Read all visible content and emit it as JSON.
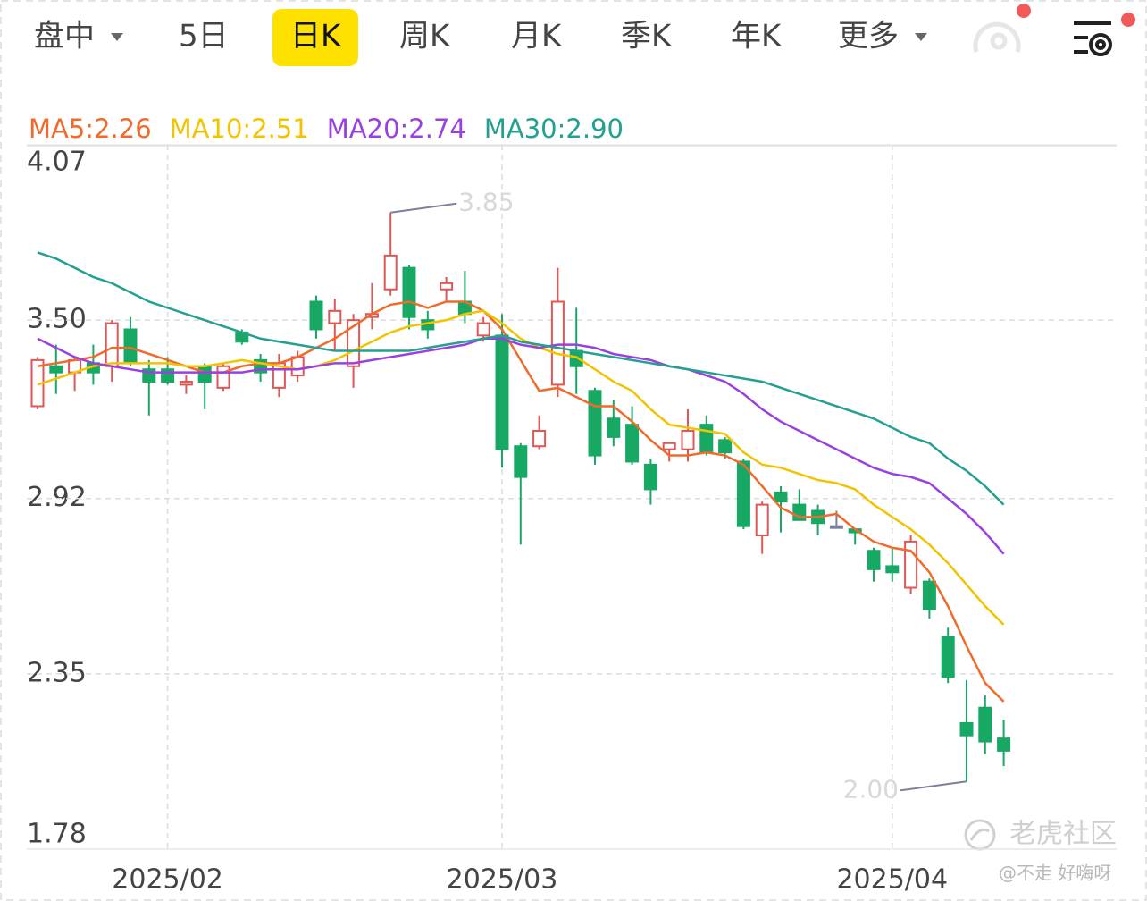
{
  "tabs": [
    "盘中",
    "5日",
    "日K",
    "周K",
    "月K",
    "季K",
    "年K",
    "更多"
  ],
  "watermark": "老虎社区",
  "credit": "@不走 好嗨呀",
  "chart_data": {
    "type": "candlestick",
    "categories": [
      null,
      null,
      null,
      null,
      null,
      null,
      null,
      "2025/02",
      null,
      null,
      null,
      null,
      null,
      null,
      null,
      null,
      null,
      null,
      null,
      null,
      null,
      null,
      null,
      null,
      null,
      "2025/03",
      null,
      null,
      null,
      null,
      null,
      null,
      null,
      null,
      null,
      null,
      null,
      null,
      null,
      null,
      null,
      null,
      null,
      null,
      null,
      null,
      "2025/04",
      null,
      null,
      null,
      null,
      null,
      null
    ],
    "open": [
      3.22,
      3.35,
      3.33,
      3.36,
      3.35,
      3.47,
      3.34,
      3.34,
      3.29,
      3.35,
      3.28,
      3.46,
      3.37,
      3.28,
      3.32,
      3.56,
      3.49,
      3.35,
      3.51,
      3.6,
      3.67,
      3.5,
      3.6,
      3.56,
      3.45,
      3.45,
      3.09,
      3.09,
      3.29,
      3.4,
      3.27,
      3.18,
      3.16,
      3.03,
      3.08,
      3.08,
      3.16,
      3.11,
      3.04,
      2.8,
      2.94,
      2.9,
      2.88,
      2.83,
      2.82,
      2.75,
      2.7,
      2.63,
      2.65,
      2.47,
      2.19,
      2.24,
      2.14
    ],
    "close": [
      3.37,
      3.33,
      3.37,
      3.33,
      3.49,
      3.36,
      3.3,
      3.3,
      3.3,
      3.3,
      3.35,
      3.43,
      3.33,
      3.36,
      3.38,
      3.47,
      3.53,
      3.5,
      3.52,
      3.71,
      3.51,
      3.47,
      3.62,
      3.52,
      3.49,
      3.08,
      2.99,
      3.14,
      3.56,
      3.35,
      3.06,
      3.12,
      3.04,
      2.95,
      3.1,
      3.14,
      3.07,
      3.07,
      2.83,
      2.9,
      2.91,
      2.85,
      2.84,
      2.83,
      2.81,
      2.69,
      2.68,
      2.78,
      2.56,
      2.34,
      2.15,
      2.13,
      2.1
    ],
    "high": [
      3.38,
      3.42,
      3.38,
      3.42,
      3.5,
      3.51,
      3.37,
      3.38,
      3.32,
      3.36,
      3.36,
      3.47,
      3.39,
      3.39,
      3.4,
      3.58,
      3.57,
      3.52,
      3.62,
      3.85,
      3.68,
      3.53,
      3.64,
      3.66,
      3.51,
      3.52,
      3.1,
      3.19,
      3.67,
      3.54,
      3.28,
      3.24,
      3.22,
      3.05,
      3.1,
      3.21,
      3.19,
      3.12,
      3.05,
      2.91,
      2.96,
      2.95,
      2.9,
      2.88,
      2.82,
      2.76,
      2.76,
      2.8,
      2.66,
      2.5,
      2.33,
      2.28,
      2.2
    ],
    "low": [
      3.21,
      3.26,
      3.27,
      3.29,
      3.3,
      3.35,
      3.19,
      3.29,
      3.26,
      3.21,
      3.27,
      3.42,
      3.3,
      3.25,
      3.3,
      3.44,
      3.4,
      3.28,
      3.47,
      3.58,
      3.47,
      3.44,
      3.56,
      3.49,
      3.43,
      3.02,
      2.77,
      3.08,
      3.25,
      3.26,
      3.03,
      3.09,
      3.03,
      2.9,
      3.04,
      3.04,
      3.06,
      3.05,
      2.82,
      2.74,
      2.81,
      2.85,
      2.8,
      2.83,
      2.77,
      2.65,
      2.65,
      2.61,
      2.53,
      2.32,
      2.0,
      2.09,
      2.05
    ],
    "up_color": "#e25555",
    "down_color": "#17a864",
    "flat_color": "#7d809a",
    "series": [
      {
        "name": "MA5:2.26",
        "color": "#f06a2c",
        "values": [
          3.35,
          3.36,
          3.37,
          3.38,
          3.41,
          3.41,
          3.39,
          3.37,
          3.35,
          3.33,
          3.33,
          3.35,
          3.36,
          3.36,
          3.38,
          3.41,
          3.44,
          3.48,
          3.52,
          3.55,
          3.56,
          3.54,
          3.56,
          3.56,
          3.53,
          3.47,
          3.37,
          3.27,
          3.28,
          3.25,
          3.22,
          3.22,
          3.17,
          3.11,
          3.06,
          3.06,
          3.07,
          3.06,
          3.03,
          2.96,
          2.89,
          2.86,
          2.86,
          2.87,
          2.82,
          2.78,
          2.76,
          2.75,
          2.68,
          2.57,
          2.44,
          2.32,
          2.26
        ]
      },
      {
        "name": "MA10:2.51",
        "color": "#f3c300",
        "values": [
          3.29,
          3.31,
          3.33,
          3.35,
          3.36,
          3.36,
          3.36,
          3.36,
          3.35,
          3.35,
          3.36,
          3.37,
          3.36,
          3.35,
          3.34,
          3.35,
          3.37,
          3.4,
          3.43,
          3.46,
          3.48,
          3.49,
          3.5,
          3.52,
          3.53,
          3.49,
          3.44,
          3.41,
          3.39,
          3.38,
          3.34,
          3.3,
          3.27,
          3.21,
          3.16,
          3.15,
          3.14,
          3.13,
          3.07,
          3.03,
          3.02,
          3.0,
          2.98,
          2.97,
          2.95,
          2.9,
          2.86,
          2.82,
          2.77,
          2.71,
          2.64,
          2.57,
          2.51
        ]
      },
      {
        "name": "MA20:2.74",
        "color": "#9a40e0",
        "values": [
          3.44,
          3.41,
          3.38,
          3.36,
          3.35,
          3.34,
          3.33,
          3.33,
          3.33,
          3.33,
          3.33,
          3.33,
          3.34,
          3.34,
          3.34,
          3.35,
          3.36,
          3.36,
          3.37,
          3.38,
          3.39,
          3.4,
          3.41,
          3.42,
          3.44,
          3.44,
          3.42,
          3.41,
          3.42,
          3.42,
          3.41,
          3.39,
          3.38,
          3.37,
          3.35,
          3.34,
          3.32,
          3.3,
          3.26,
          3.21,
          3.17,
          3.14,
          3.11,
          3.08,
          3.05,
          3.02,
          3.0,
          2.99,
          2.97,
          2.92,
          2.87,
          2.81,
          2.74
        ]
      },
      {
        "name": "MA30:2.90",
        "color": "#24a090",
        "values": [
          3.72,
          3.7,
          3.67,
          3.64,
          3.62,
          3.59,
          3.56,
          3.54,
          3.52,
          3.5,
          3.48,
          3.46,
          3.44,
          3.43,
          3.42,
          3.41,
          3.4,
          3.4,
          3.4,
          3.4,
          3.4,
          3.41,
          3.42,
          3.43,
          3.44,
          3.45,
          3.43,
          3.42,
          3.41,
          3.4,
          3.39,
          3.38,
          3.37,
          3.36,
          3.35,
          3.34,
          3.33,
          3.32,
          3.31,
          3.3,
          3.28,
          3.26,
          3.24,
          3.22,
          3.2,
          3.18,
          3.15,
          3.12,
          3.1,
          3.05,
          3.01,
          2.96,
          2.9
        ]
      }
    ],
    "annotations": [
      "3.85",
      "2.00"
    ],
    "ylim": [
      1.78,
      4.07
    ],
    "yticks": [
      4.07,
      {
        "value": 3.5,
        "label": "3.50"
      },
      2.92,
      2.35,
      1.78
    ],
    "grid": true
  }
}
